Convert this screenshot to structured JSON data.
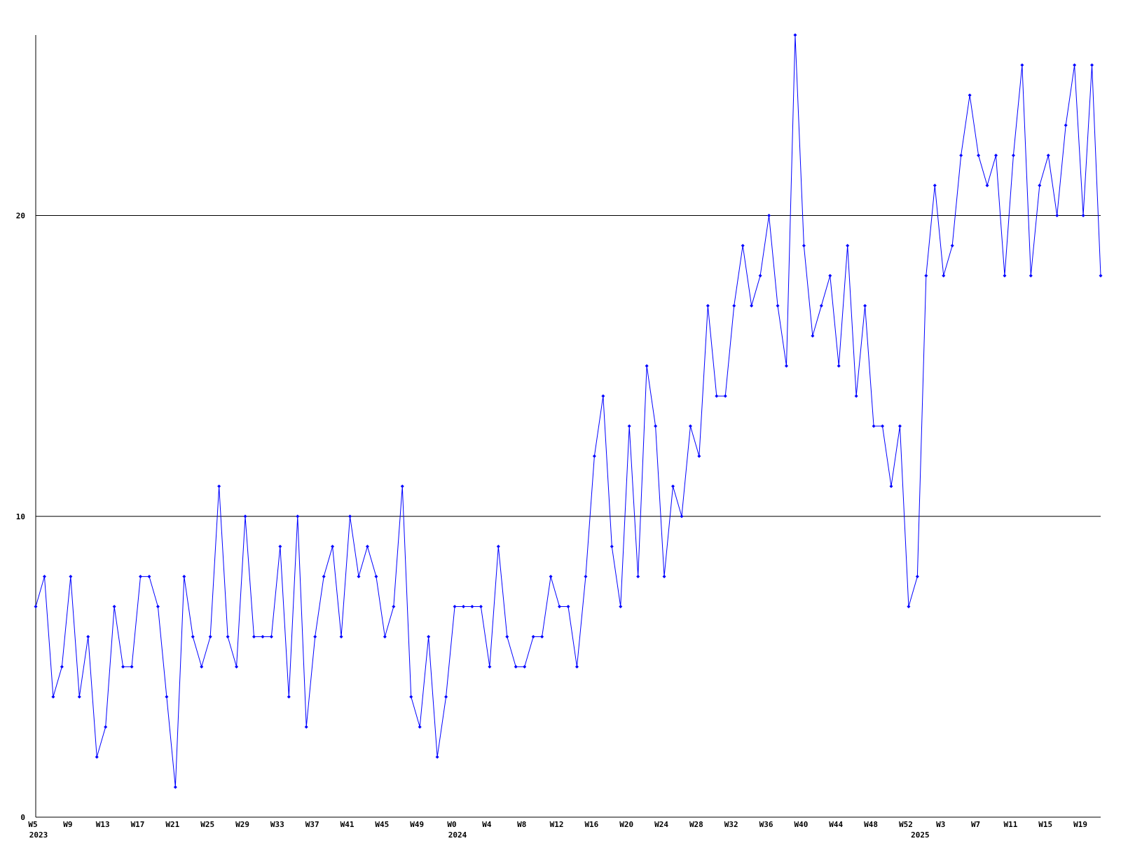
{
  "chart_data": {
    "type": "line",
    "categories": [
      "W5",
      null,
      null,
      null,
      "W9",
      null,
      null,
      null,
      "W13",
      null,
      null,
      null,
      "W17",
      null,
      null,
      null,
      "W21",
      null,
      null,
      null,
      "W25",
      null,
      null,
      null,
      "W29",
      null,
      null,
      null,
      "W33",
      null,
      null,
      null,
      "W37",
      null,
      null,
      null,
      "W41",
      null,
      null,
      null,
      "W45",
      null,
      null,
      null,
      "W49",
      null,
      null,
      null,
      "W0",
      null,
      null,
      null,
      "W4",
      null,
      null,
      null,
      "W8",
      null,
      null,
      null,
      "W12",
      null,
      null,
      null,
      "W16",
      null,
      null,
      null,
      "W20",
      null,
      null,
      null,
      "W24",
      null,
      null,
      null,
      "W28",
      null,
      null,
      null,
      "W32",
      null,
      null,
      null,
      "W36",
      null,
      null,
      null,
      "W40",
      null,
      null,
      null,
      "W44",
      null,
      null,
      null,
      "W48",
      null,
      null,
      null,
      "W52",
      null,
      null,
      null,
      "W3",
      null,
      null,
      null,
      "W7",
      null,
      null,
      null,
      "W11",
      null,
      null,
      null,
      "W15",
      null,
      null,
      null,
      "W19",
      null,
      null
    ],
    "years": [
      "2023",
      null,
      null,
      null,
      null,
      null,
      null,
      null,
      null,
      null,
      null,
      null,
      null,
      null,
      null,
      null,
      null,
      null,
      null,
      null,
      null,
      null,
      null,
      null,
      null,
      null,
      null,
      null,
      null,
      null,
      null,
      null,
      null,
      null,
      null,
      null,
      null,
      null,
      null,
      null,
      null,
      null,
      null,
      null,
      null,
      null,
      null,
      null,
      "2024",
      null,
      null,
      null,
      null,
      null,
      null,
      null,
      null,
      null,
      null,
      null,
      null,
      null,
      null,
      null,
      null,
      null,
      null,
      null,
      null,
      null,
      null,
      null,
      null,
      null,
      null,
      null,
      null,
      null,
      null,
      null,
      null,
      null,
      null,
      null,
      null,
      null,
      null,
      null,
      null,
      null,
      null,
      null,
      null,
      null,
      null,
      null,
      null,
      null,
      null,
      null,
      null,
      "2025",
      null,
      null,
      null,
      null,
      null,
      null,
      null,
      null,
      null,
      null,
      null,
      null,
      null,
      null,
      null,
      null,
      null,
      null,
      null,
      null,
      null
    ],
    "values": [
      7,
      8,
      4,
      5,
      8,
      4,
      6,
      2,
      3,
      7,
      5,
      5,
      8,
      8,
      7,
      4,
      1,
      8,
      6,
      5,
      6,
      11,
      6,
      5,
      10,
      6,
      6,
      6,
      9,
      4,
      10,
      3,
      6,
      8,
      9,
      6,
      10,
      8,
      9,
      8,
      6,
      7,
      11,
      4,
      3,
      6,
      2,
      4,
      7,
      7,
      7,
      7,
      5,
      9,
      6,
      5,
      5,
      6,
      6,
      8,
      7,
      7,
      5,
      8,
      12,
      14,
      9,
      7,
      13,
      8,
      15,
      13,
      8,
      11,
      10,
      13,
      12,
      17,
      14,
      14,
      17,
      19,
      17,
      18,
      20,
      17,
      15,
      26,
      19,
      16,
      17,
      18,
      15,
      19,
      14,
      17,
      13,
      13,
      11,
      13,
      7,
      8,
      18,
      21,
      18,
      19,
      22,
      24,
      22,
      21,
      22,
      18,
      22,
      25,
      18,
      21,
      22,
      20,
      23,
      25,
      20,
      25,
      18
    ],
    "color": "#0000ff",
    "ylim": [
      0,
      26
    ],
    "yticks": [
      0,
      10,
      20
    ],
    "grid": true
  }
}
